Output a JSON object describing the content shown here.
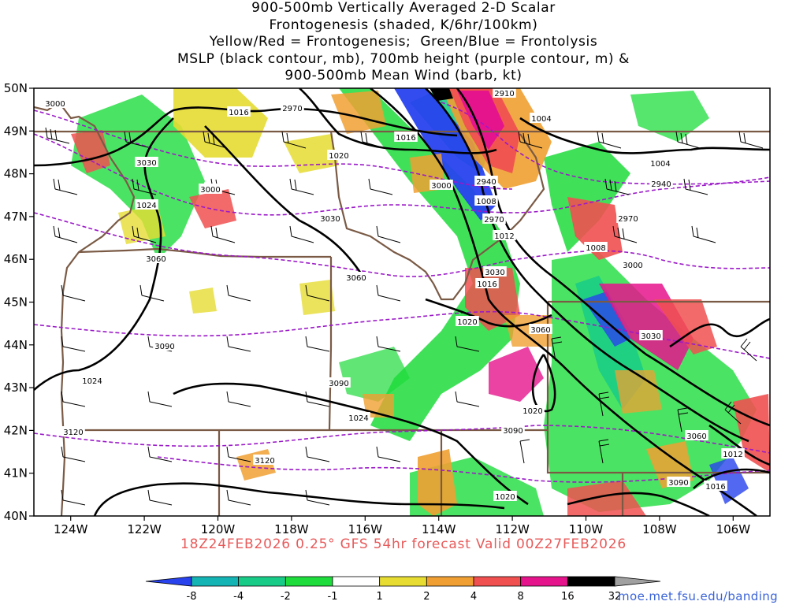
{
  "title": {
    "lines": [
      "900-500mb Vertically Averaged 2-D Scalar",
      "Frontogenesis (shaded, K/6hr/100km)",
      "Yellow/Red = Frontogenesis;  Green/Blue = Frontolysis",
      "MSLP (black contour, mb), 700mb height (purple contour, m) &",
      "900-500mb Mean Wind (barb, kt)"
    ]
  },
  "map": {
    "lat_labels": [
      "50N",
      "49N",
      "48N",
      "47N",
      "46N",
      "45N",
      "44N",
      "43N",
      "42N",
      "41N",
      "40N"
    ],
    "lon_labels": [
      "124W",
      "122W",
      "120W",
      "118W",
      "116W",
      "114W",
      "112W",
      "110W",
      "108W",
      "106W"
    ],
    "lon_range": [
      -125,
      -105
    ],
    "lat_range": [
      40,
      50
    ],
    "colors": {
      "mslp": "#000000",
      "height": "#9b19c8",
      "borders": "#7a5a45"
    },
    "mslp_labels": [
      "1016",
      "1016",
      "1004",
      "1004",
      "1020",
      "1024",
      "1008",
      "1012",
      "1008",
      "1016",
      "1020",
      "1020",
      "1024",
      "1020",
      "1012",
      "1016",
      "1020",
      "1024"
    ],
    "height_labels": [
      "3000",
      "2970",
      "2910",
      "3030",
      "3000",
      "3000",
      "2940",
      "2940",
      "2970",
      "2970",
      "3030",
      "3060",
      "3000",
      "3060",
      "3030",
      "3030",
      "3090",
      "3090",
      "3060",
      "3120",
      "3090",
      "3120",
      "3090",
      "3060"
    ]
  },
  "footer": {
    "text": "18Z24FEB2026 0.25° GFS 54hr forecast Valid 00Z27FEB2026"
  },
  "colorbar": {
    "labels": [
      "-8",
      "-4",
      "-2",
      "-1",
      "1",
      "2",
      "4",
      "8",
      "16",
      "32"
    ],
    "colors": [
      "#2842ee",
      "#14b4b4",
      "#18cc88",
      "#1edc3c",
      "#ffffff",
      "#e6dc32",
      "#f0a032",
      "#f05050",
      "#e6148c",
      "#000000",
      "#a0a0a0"
    ]
  },
  "credit": "moe.met.fsu.edu/banding"
}
